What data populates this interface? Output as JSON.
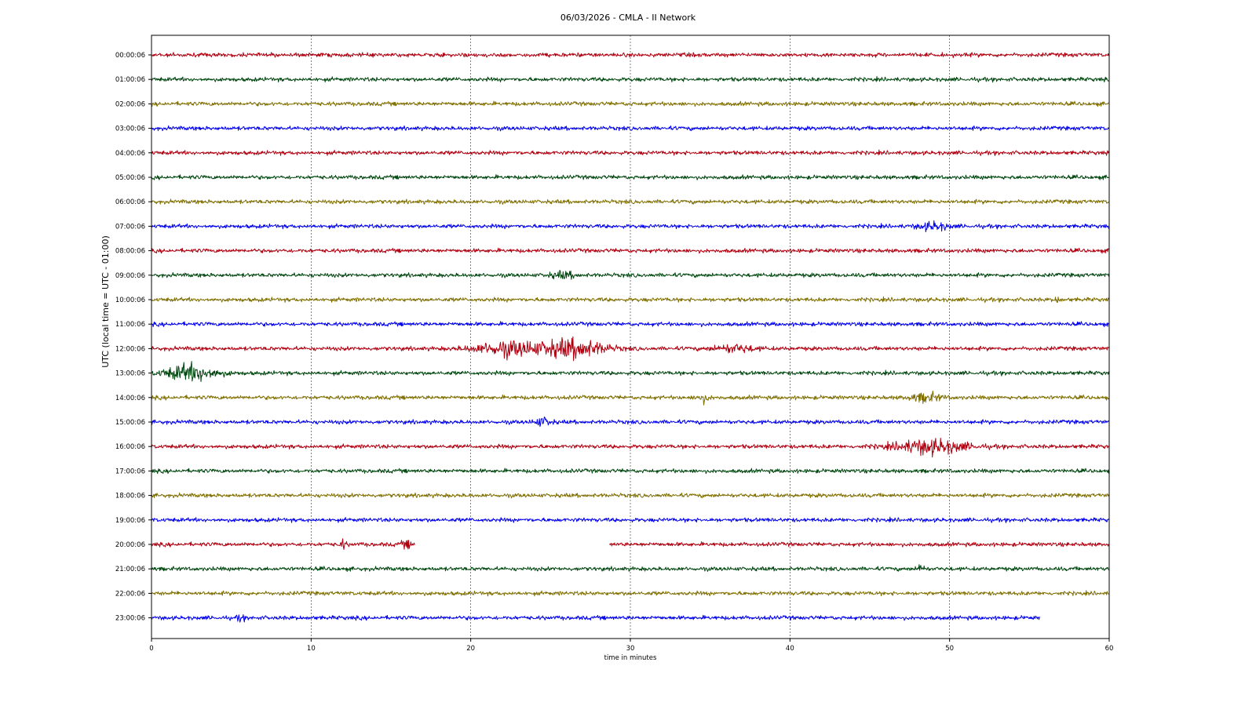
{
  "chart_data": {
    "type": "line",
    "title": "06/03/2026 - CMLA - II Network",
    "xlabel": "time in minutes",
    "ylabel": "UTC (local time = UTC - 01:00)",
    "xlim": [
      0,
      60
    ],
    "xticks": [
      0,
      10,
      20,
      30,
      40,
      50,
      60
    ],
    "grid": "vertical dashed at x ticks",
    "row_colors": [
      "#b00010",
      "#00470f",
      "#7f6e00",
      "#0000ee"
    ],
    "series": [
      {
        "name": "00:00:06",
        "x_range": [
          0,
          60
        ],
        "bursts": []
      },
      {
        "name": "01:00:06",
        "x_range": [
          0,
          60
        ],
        "bursts": []
      },
      {
        "name": "02:00:06",
        "x_range": [
          0,
          60
        ],
        "bursts": []
      },
      {
        "name": "03:00:06",
        "x_range": [
          0,
          60
        ],
        "bursts": []
      },
      {
        "name": "04:00:06",
        "x_range": [
          0,
          60
        ],
        "bursts": []
      },
      {
        "name": "05:00:06",
        "x_range": [
          0,
          60
        ],
        "bursts": []
      },
      {
        "name": "06:00:06",
        "x_range": [
          0,
          60
        ],
        "bursts": []
      },
      {
        "name": "07:00:06",
        "x_range": [
          0,
          60
        ],
        "bursts": [
          {
            "x": 49.0,
            "width": 1.5,
            "amp": 1.8
          }
        ]
      },
      {
        "name": "08:00:06",
        "x_range": [
          0,
          60
        ],
        "bursts": []
      },
      {
        "name": "09:00:06",
        "x_range": [
          0,
          60
        ],
        "bursts": [
          {
            "x": 25.8,
            "width": 1.2,
            "amp": 1.5
          }
        ]
      },
      {
        "name": "10:00:06",
        "x_range": [
          0,
          60
        ],
        "bursts": [
          {
            "x": 56.8,
            "width": 0.2,
            "amp": 2.0
          }
        ]
      },
      {
        "name": "11:00:06",
        "x_range": [
          0,
          60
        ],
        "bursts": []
      },
      {
        "name": "12:00:06",
        "x_range": [
          0,
          60
        ],
        "bursts": [
          {
            "x": 22.5,
            "width": 3.5,
            "amp": 3.5
          },
          {
            "x": 26.5,
            "width": 3.0,
            "amp": 4.5
          },
          {
            "x": 36.5,
            "width": 2.0,
            "amp": 1.8
          }
        ]
      },
      {
        "name": "13:00:06",
        "x_range": [
          0,
          60
        ],
        "bursts": [
          {
            "x": 2.5,
            "width": 2.5,
            "amp": 4.0
          }
        ]
      },
      {
        "name": "14:00:06",
        "x_range": [
          0,
          60
        ],
        "bursts": [
          {
            "x": 34.5,
            "width": 0.6,
            "amp": 2.0
          },
          {
            "x": 48.5,
            "width": 1.5,
            "amp": 2.0
          }
        ]
      },
      {
        "name": "15:00:06",
        "x_range": [
          0,
          60
        ],
        "bursts": [
          {
            "x": 24.5,
            "width": 0.8,
            "amp": 2.0
          }
        ]
      },
      {
        "name": "16:00:06",
        "x_range": [
          0,
          60
        ],
        "bursts": [
          {
            "x": 48.8,
            "width": 3.5,
            "amp": 3.5
          }
        ]
      },
      {
        "name": "17:00:06",
        "x_range": [
          0,
          60
        ],
        "bursts": []
      },
      {
        "name": "18:00:06",
        "x_range": [
          0,
          60
        ],
        "bursts": []
      },
      {
        "name": "19:00:06",
        "x_range": [
          0,
          60
        ],
        "bursts": []
      },
      {
        "name": "20:00:06",
        "x_range": [
          0,
          16.5
        ],
        "x_range_2": [
          28.7,
          60
        ],
        "bursts": [
          {
            "x": 12.0,
            "width": 0.3,
            "amp": 2.0
          },
          {
            "x": 16.0,
            "width": 0.6,
            "amp": 1.5
          }
        ]
      },
      {
        "name": "21:00:06",
        "x_range": [
          0,
          60
        ],
        "bursts": [
          {
            "x": 48.2,
            "width": 0.3,
            "amp": 3.0
          }
        ]
      },
      {
        "name": "22:00:06",
        "x_range": [
          0,
          60
        ],
        "bursts": []
      },
      {
        "name": "23:00:06",
        "x_range": [
          0,
          55.7
        ],
        "bursts": [
          {
            "x": 5.6,
            "width": 0.3,
            "amp": 1.8
          }
        ]
      }
    ]
  }
}
